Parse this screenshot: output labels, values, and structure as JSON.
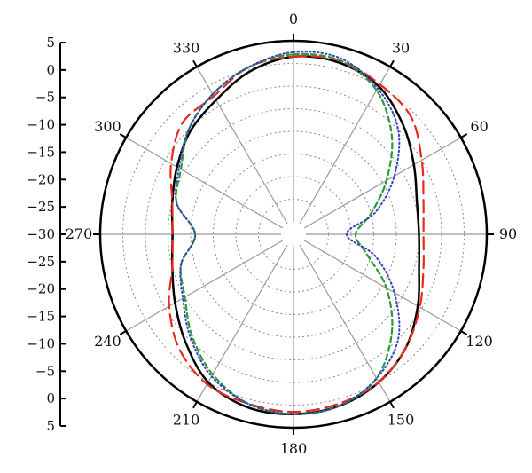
{
  "chart_data": {
    "type": "polar-line",
    "angle_labels": [
      "0",
      "30",
      "60",
      "90",
      "120",
      "150",
      "180",
      "210",
      "240",
      "270",
      "300",
      "330"
    ],
    "radial_axis": {
      "min_db": -35,
      "max_db": 5,
      "tick_labels": [
        "5",
        "0",
        "−5",
        "−10",
        "−15",
        "−20",
        "−25",
        "−30",
        "−25",
        "−20",
        "−15",
        "−10",
        "−5",
        "0",
        "5"
      ],
      "tick_db": [
        5,
        0,
        -5,
        -10,
        -15,
        -20,
        -25,
        -30,
        -25,
        -20,
        -15,
        -10,
        -5,
        0,
        5
      ],
      "ring_db": [
        0,
        -5,
        -10,
        -15,
        -20,
        -25,
        -30
      ]
    },
    "grid": true,
    "series": [
      {
        "color": "#000000",
        "dash": "solid",
        "width": 2.5,
        "angles": [
          0,
          15,
          30,
          45,
          60,
          75,
          90,
          105,
          120,
          135,
          150,
          165,
          180,
          195,
          210,
          225,
          240,
          255,
          270,
          285,
          300,
          315,
          330,
          345
        ],
        "db": [
          1.5,
          1.5,
          0,
          -3.5,
          -7,
          -9.5,
          -10,
          -9,
          -6,
          -2.5,
          0,
          1.5,
          2,
          1.8,
          0,
          -4,
          -7.5,
          -10,
          -11,
          -10,
          -8,
          -5.5,
          -3.5,
          -0.5
        ]
      },
      {
        "color": "#e8291c",
        "dash": "long-dash",
        "width": 2.2,
        "angles": [
          0,
          15,
          30,
          45,
          60,
          75,
          90,
          105,
          120,
          135,
          150,
          165,
          180,
          195,
          210,
          225,
          240,
          255,
          270,
          285,
          300,
          315,
          330,
          345
        ],
        "db": [
          1.5,
          2,
          0.5,
          -1,
          -5,
          -8,
          -9,
          -8,
          -5.5,
          -2.5,
          0,
          1,
          1.5,
          1,
          0.5,
          -2,
          -6,
          -10,
          -11,
          -10,
          -6.5,
          -3,
          -2.5,
          0.5
        ]
      },
      {
        "color": "#2e9a3a",
        "dash": "short-dash",
        "width": 2.2,
        "angles": [
          0,
          15,
          30,
          45,
          60,
          75,
          90,
          105,
          120,
          135,
          150,
          165,
          180,
          195,
          210,
          225,
          240,
          255,
          270,
          285,
          300,
          315,
          330,
          345
        ],
        "db": [
          2,
          2,
          -1,
          -7,
          -14,
          -20,
          -24,
          -21,
          -14,
          -7,
          -1,
          1.5,
          2,
          1,
          -2,
          -6,
          -10,
          -12,
          -16,
          -11,
          -9,
          -5,
          -2,
          0.5
        ]
      },
      {
        "color": "#3344bb",
        "dash": "dotted",
        "width": 2,
        "angles": [
          0,
          15,
          30,
          45,
          60,
          75,
          90,
          105,
          120,
          135,
          150,
          165,
          180,
          195,
          210,
          225,
          240,
          255,
          270,
          285,
          300,
          315,
          330,
          345
        ],
        "db": [
          2.5,
          2.5,
          -0.5,
          -5,
          -12,
          -19,
          -26,
          -19,
          -12,
          -5,
          -1,
          1.5,
          2,
          1,
          -1.5,
          -5.5,
          -9.5,
          -12,
          -16,
          -11,
          -8.5,
          -5,
          -2,
          0.5
        ]
      }
    ]
  }
}
